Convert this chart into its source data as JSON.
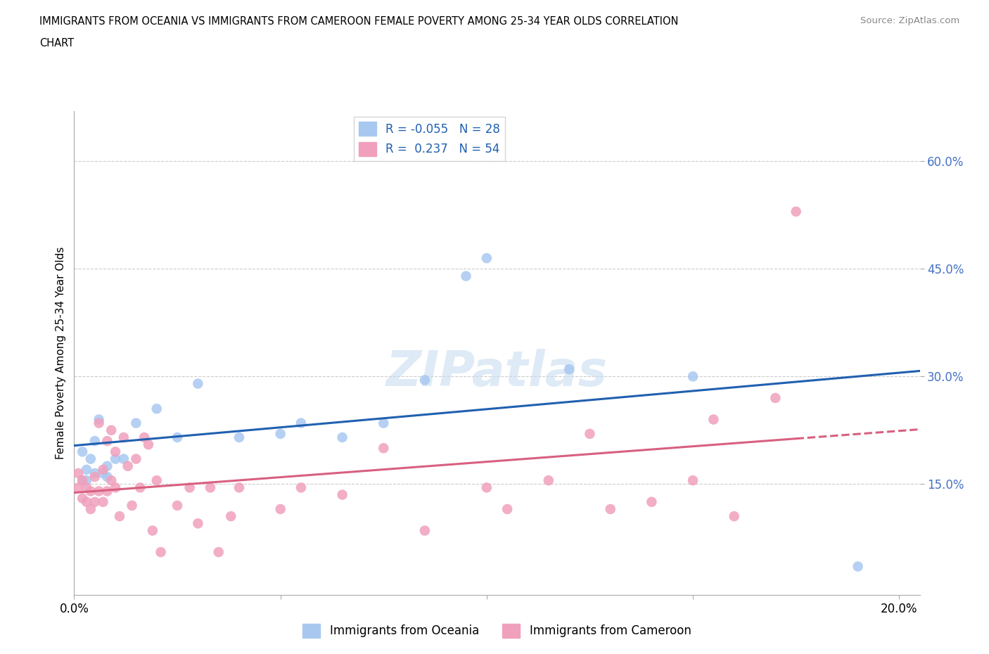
{
  "title_line1": "IMMIGRANTS FROM OCEANIA VS IMMIGRANTS FROM CAMEROON FEMALE POVERTY AMONG 25-34 YEAR OLDS CORRELATION",
  "title_line2": "CHART",
  "source": "Source: ZipAtlas.com",
  "ylabel": "Female Poverty Among 25-34 Year Olds",
  "xlim": [
    0.0,
    0.205
  ],
  "ylim": [
    -0.005,
    0.67
  ],
  "yticks": [
    0.15,
    0.3,
    0.45,
    0.6
  ],
  "ytick_labels": [
    "15.0%",
    "30.0%",
    "45.0%",
    "60.0%"
  ],
  "xticks": [
    0.0,
    0.05,
    0.1,
    0.15,
    0.2
  ],
  "xtick_labels": [
    "0.0%",
    "",
    "",
    "",
    "20.0%"
  ],
  "legend_r1": "R = -0.055",
  "legend_n1": "N = 28",
  "legend_r2": "R =  0.237",
  "legend_n2": "N = 54",
  "blue_color": "#A8C8F0",
  "pink_color": "#F0A0BC",
  "trend_blue": "#2060B0",
  "trend_pink": "#D86080",
  "watermark": "ZIPatlas",
  "oceania_x": [
    0.002,
    0.003,
    0.004,
    0.005,
    0.006,
    0.007,
    0.008,
    0.01,
    0.015,
    0.02,
    0.025,
    0.03,
    0.04,
    0.05,
    0.055,
    0.065,
    0.075,
    0.085,
    0.095,
    0.1,
    0.12,
    0.19,
    0.002,
    0.003,
    0.005,
    0.008,
    0.012,
    0.15
  ],
  "oceania_y": [
    0.195,
    0.17,
    0.185,
    0.21,
    0.24,
    0.165,
    0.175,
    0.185,
    0.235,
    0.255,
    0.215,
    0.29,
    0.215,
    0.22,
    0.235,
    0.215,
    0.235,
    0.295,
    0.44,
    0.465,
    0.31,
    0.035,
    0.155,
    0.155,
    0.165,
    0.16,
    0.185,
    0.3
  ],
  "cameroon_x": [
    0.001,
    0.001,
    0.002,
    0.002,
    0.003,
    0.003,
    0.004,
    0.004,
    0.005,
    0.005,
    0.006,
    0.006,
    0.007,
    0.007,
    0.008,
    0.008,
    0.009,
    0.009,
    0.01,
    0.01,
    0.011,
    0.012,
    0.013,
    0.014,
    0.015,
    0.016,
    0.017,
    0.018,
    0.019,
    0.02,
    0.021,
    0.025,
    0.028,
    0.03,
    0.033,
    0.035,
    0.038,
    0.04,
    0.05,
    0.055,
    0.065,
    0.075,
    0.085,
    0.1,
    0.105,
    0.115,
    0.125,
    0.13,
    0.14,
    0.15,
    0.155,
    0.16,
    0.17,
    0.175
  ],
  "cameroon_y": [
    0.145,
    0.165,
    0.13,
    0.155,
    0.125,
    0.145,
    0.115,
    0.14,
    0.125,
    0.16,
    0.14,
    0.235,
    0.125,
    0.17,
    0.14,
    0.21,
    0.155,
    0.225,
    0.145,
    0.195,
    0.105,
    0.215,
    0.175,
    0.12,
    0.185,
    0.145,
    0.215,
    0.205,
    0.085,
    0.155,
    0.055,
    0.12,
    0.145,
    0.095,
    0.145,
    0.055,
    0.105,
    0.145,
    0.115,
    0.145,
    0.135,
    0.2,
    0.085,
    0.145,
    0.115,
    0.155,
    0.22,
    0.115,
    0.125,
    0.155,
    0.24,
    0.105,
    0.27,
    0.53
  ]
}
